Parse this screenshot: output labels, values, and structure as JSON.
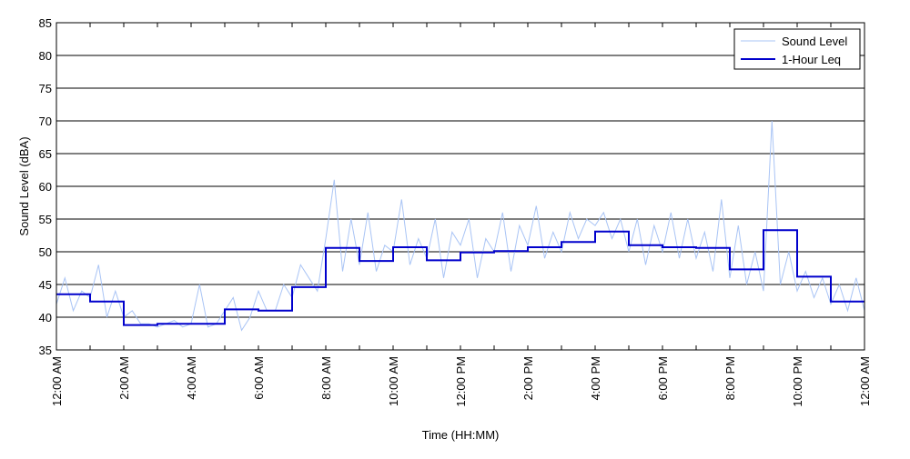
{
  "chart_data": {
    "type": "line",
    "xlabel": "Time (HH:MM)",
    "ylabel": "Sound Level (dBA)",
    "ylim": [
      35,
      85
    ],
    "xlim_hours": [
      0,
      24
    ],
    "yticks": [
      35,
      40,
      45,
      50,
      55,
      60,
      65,
      70,
      75,
      80,
      85
    ],
    "xtick_labels": [
      "12:00 AM",
      "2:00 AM",
      "4:00 AM",
      "6:00 AM",
      "8:00 AM",
      "10:00 AM",
      "12:00 PM",
      "2:00 PM",
      "4:00 PM",
      "6:00 PM",
      "8:00 PM",
      "10:00 PM",
      "12:00 AM"
    ],
    "grid": "horizontal",
    "legend_position": "top-right",
    "series": [
      {
        "name": "Sound Level",
        "color": "#a9c4f5",
        "style": "thin line",
        "x_hours": [
          0.0,
          0.25,
          0.5,
          0.75,
          1.0,
          1.25,
          1.5,
          1.75,
          2.0,
          2.25,
          2.5,
          2.75,
          3.0,
          3.25,
          3.5,
          3.75,
          4.0,
          4.25,
          4.5,
          4.75,
          5.0,
          5.25,
          5.5,
          5.75,
          6.0,
          6.25,
          6.5,
          6.75,
          7.0,
          7.25,
          7.5,
          7.75,
          8.0,
          8.25,
          8.5,
          8.75,
          9.0,
          9.25,
          9.5,
          9.75,
          10.0,
          10.25,
          10.5,
          10.75,
          11.0,
          11.25,
          11.5,
          11.75,
          12.0,
          12.25,
          12.5,
          12.75,
          13.0,
          13.25,
          13.5,
          13.75,
          14.0,
          14.25,
          14.5,
          14.75,
          15.0,
          15.25,
          15.5,
          15.75,
          16.0,
          16.25,
          16.5,
          16.75,
          17.0,
          17.25,
          17.5,
          17.75,
          18.0,
          18.25,
          18.5,
          18.75,
          19.0,
          19.25,
          19.5,
          19.75,
          20.0,
          20.25,
          20.5,
          20.75,
          21.0,
          21.25,
          21.5,
          21.75,
          22.0,
          22.25,
          22.5,
          22.75,
          23.0,
          23.25,
          23.5,
          23.75,
          24.0
        ],
        "values": [
          42,
          46,
          41,
          44,
          43,
          48,
          40,
          44,
          40,
          41,
          39,
          39,
          38.5,
          39,
          39.5,
          38.5,
          39,
          45,
          38.5,
          39,
          41,
          43,
          38,
          40,
          44,
          41,
          41,
          45,
          43,
          48,
          46,
          44,
          52,
          61,
          47,
          55,
          48,
          56,
          47,
          51,
          50,
          58,
          48,
          52,
          49,
          55,
          46,
          53,
          51,
          55,
          46,
          52,
          50,
          56,
          47,
          54,
          51,
          57,
          49,
          53,
          50,
          56,
          52,
          55,
          54,
          56,
          52,
          55,
          50,
          55,
          48,
          54,
          50,
          56,
          49,
          55,
          49,
          53,
          47,
          58,
          46,
          54,
          45,
          50,
          44,
          70,
          45,
          50,
          44,
          47,
          43,
          46,
          42,
          45,
          41,
          46,
          41
        ]
      },
      {
        "name": "1-Hour Leq",
        "color": "#0000cc",
        "style": "step",
        "x_hours": [
          0,
          1,
          2,
          3,
          4,
          5,
          6,
          7,
          8,
          9,
          10,
          11,
          12,
          13,
          14,
          15,
          16,
          17,
          18,
          19,
          20,
          21,
          22,
          23
        ],
        "values": [
          43.5,
          42.4,
          38.8,
          39.0,
          39.0,
          41.2,
          41.0,
          44.6,
          50.6,
          48.6,
          50.7,
          48.7,
          49.9,
          50.1,
          50.7,
          51.5,
          53.1,
          51.0,
          50.7,
          50.6,
          47.3,
          53.3,
          46.2,
          42.4
        ]
      }
    ]
  }
}
